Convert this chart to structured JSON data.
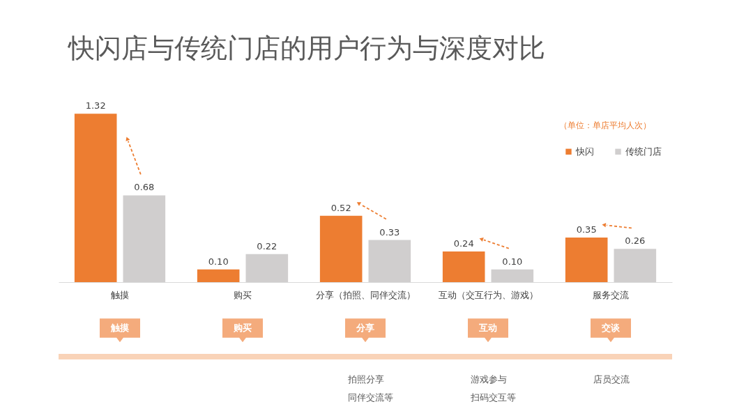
{
  "chart_data": {
    "type": "bar",
    "title": "快闪店与传统门店的用户行为与深度对比",
    "categories": [
      "触摸",
      "购买",
      "分享（拍照、同伴交流）",
      "互动（交互行为、游戏）",
      "服务交流"
    ],
    "series": [
      {
        "name": "快闪",
        "color": "#ed7d31",
        "values": [
          1.32,
          0.1,
          0.52,
          0.24,
          0.35
        ],
        "value_labels": [
          "1.32",
          "0.10",
          "0.52",
          "0.24",
          "0.35"
        ]
      },
      {
        "name": "传统门店",
        "color": "#d0cece",
        "values": [
          0.68,
          0.22,
          0.33,
          0.1,
          0.26
        ],
        "value_labels": [
          "0.68",
          "0.22",
          "0.33",
          "0.10",
          "0.26"
        ]
      }
    ],
    "legend": "top right",
    "tick_labels": "x",
    "annotations": [
      "（单位：单店平均人次）",
      "触摸",
      "购买",
      "分享",
      "互动",
      "交谈",
      "拍照分享",
      "同伴交流等",
      "游戏参与",
      "扫码交互等",
      "店员交流"
    ]
  }
}
